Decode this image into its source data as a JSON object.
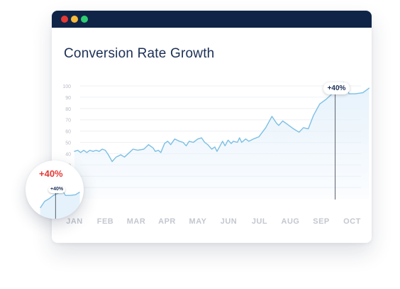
{
  "window": {
    "controls": [
      {
        "name": "close",
        "color": "#e53935"
      },
      {
        "name": "minimize",
        "color": "#f6b93b"
      },
      {
        "name": "maximize",
        "color": "#2ecc71"
      }
    ],
    "titlebar_color": "#0f2447"
  },
  "chart_data": {
    "type": "area",
    "title": "Conversion Rate Growth",
    "xlabel": "",
    "ylabel": "",
    "categories": [
      "JAN",
      "FEB",
      "MAR",
      "APR",
      "MAY",
      "JUN",
      "JUL",
      "AUG",
      "SEP",
      "OCT"
    ],
    "yticks": [
      10,
      20,
      30,
      40,
      50,
      60,
      70,
      80,
      90,
      100
    ],
    "ylim": [
      0,
      100
    ],
    "grid": true,
    "line_color": "#7cbfe4",
    "fill_color": "#e6f2fb",
    "series": [
      {
        "values": [
          [
            0,
            42
          ],
          [
            0.1,
            43
          ],
          [
            0.2,
            41
          ],
          [
            0.3,
            43
          ],
          [
            0.4,
            41
          ],
          [
            0.5,
            43
          ],
          [
            0.6,
            42
          ],
          [
            0.7,
            43
          ],
          [
            0.8,
            42
          ],
          [
            0.9,
            44
          ],
          [
            1.0,
            43
          ],
          [
            1.1,
            39
          ],
          [
            1.22,
            33
          ],
          [
            1.35,
            37
          ],
          [
            1.5,
            39
          ],
          [
            1.62,
            37
          ],
          [
            1.78,
            41
          ],
          [
            1.9,
            44
          ],
          [
            2.05,
            43
          ],
          [
            2.25,
            44
          ],
          [
            2.4,
            48
          ],
          [
            2.55,
            45
          ],
          [
            2.62,
            42
          ],
          [
            2.72,
            43
          ],
          [
            2.8,
            41
          ],
          [
            2.92,
            49
          ],
          [
            3.02,
            51
          ],
          [
            3.12,
            48
          ],
          [
            3.25,
            53
          ],
          [
            3.4,
            51
          ],
          [
            3.52,
            50
          ],
          [
            3.62,
            47
          ],
          [
            3.72,
            51
          ],
          [
            3.85,
            50
          ],
          [
            4.0,
            53
          ],
          [
            4.12,
            54
          ],
          [
            4.22,
            50
          ],
          [
            4.32,
            48
          ],
          [
            4.45,
            44
          ],
          [
            4.55,
            46
          ],
          [
            4.62,
            42
          ],
          [
            4.72,
            47
          ],
          [
            4.8,
            51
          ],
          [
            4.88,
            47
          ],
          [
            4.98,
            52
          ],
          [
            5.08,
            49
          ],
          [
            5.15,
            51
          ],
          [
            5.28,
            50
          ],
          [
            5.35,
            54
          ],
          [
            5.42,
            50
          ],
          [
            5.55,
            53
          ],
          [
            5.65,
            51
          ],
          [
            5.8,
            53
          ],
          [
            5.98,
            55
          ],
          [
            6.2,
            63
          ],
          [
            6.4,
            73
          ],
          [
            6.55,
            67
          ],
          [
            6.62,
            65
          ],
          [
            6.75,
            69
          ],
          [
            6.9,
            66
          ],
          [
            7.1,
            62
          ],
          [
            7.28,
            59
          ],
          [
            7.42,
            63
          ],
          [
            7.58,
            62
          ],
          [
            7.75,
            74
          ],
          [
            7.95,
            84
          ],
          [
            8.15,
            88
          ],
          [
            8.35,
            93
          ],
          [
            8.55,
            96
          ],
          [
            8.72,
            103
          ],
          [
            8.9,
            93
          ],
          [
            9.1,
            93
          ],
          [
            9.35,
            94
          ],
          [
            9.55,
            98
          ]
        ]
      }
    ],
    "annotation": {
      "label": "+40%",
      "x": 8.45
    },
    "inset": {
      "label": "+40%",
      "small_label": "+40%",
      "label_color": "#e53935"
    }
  }
}
